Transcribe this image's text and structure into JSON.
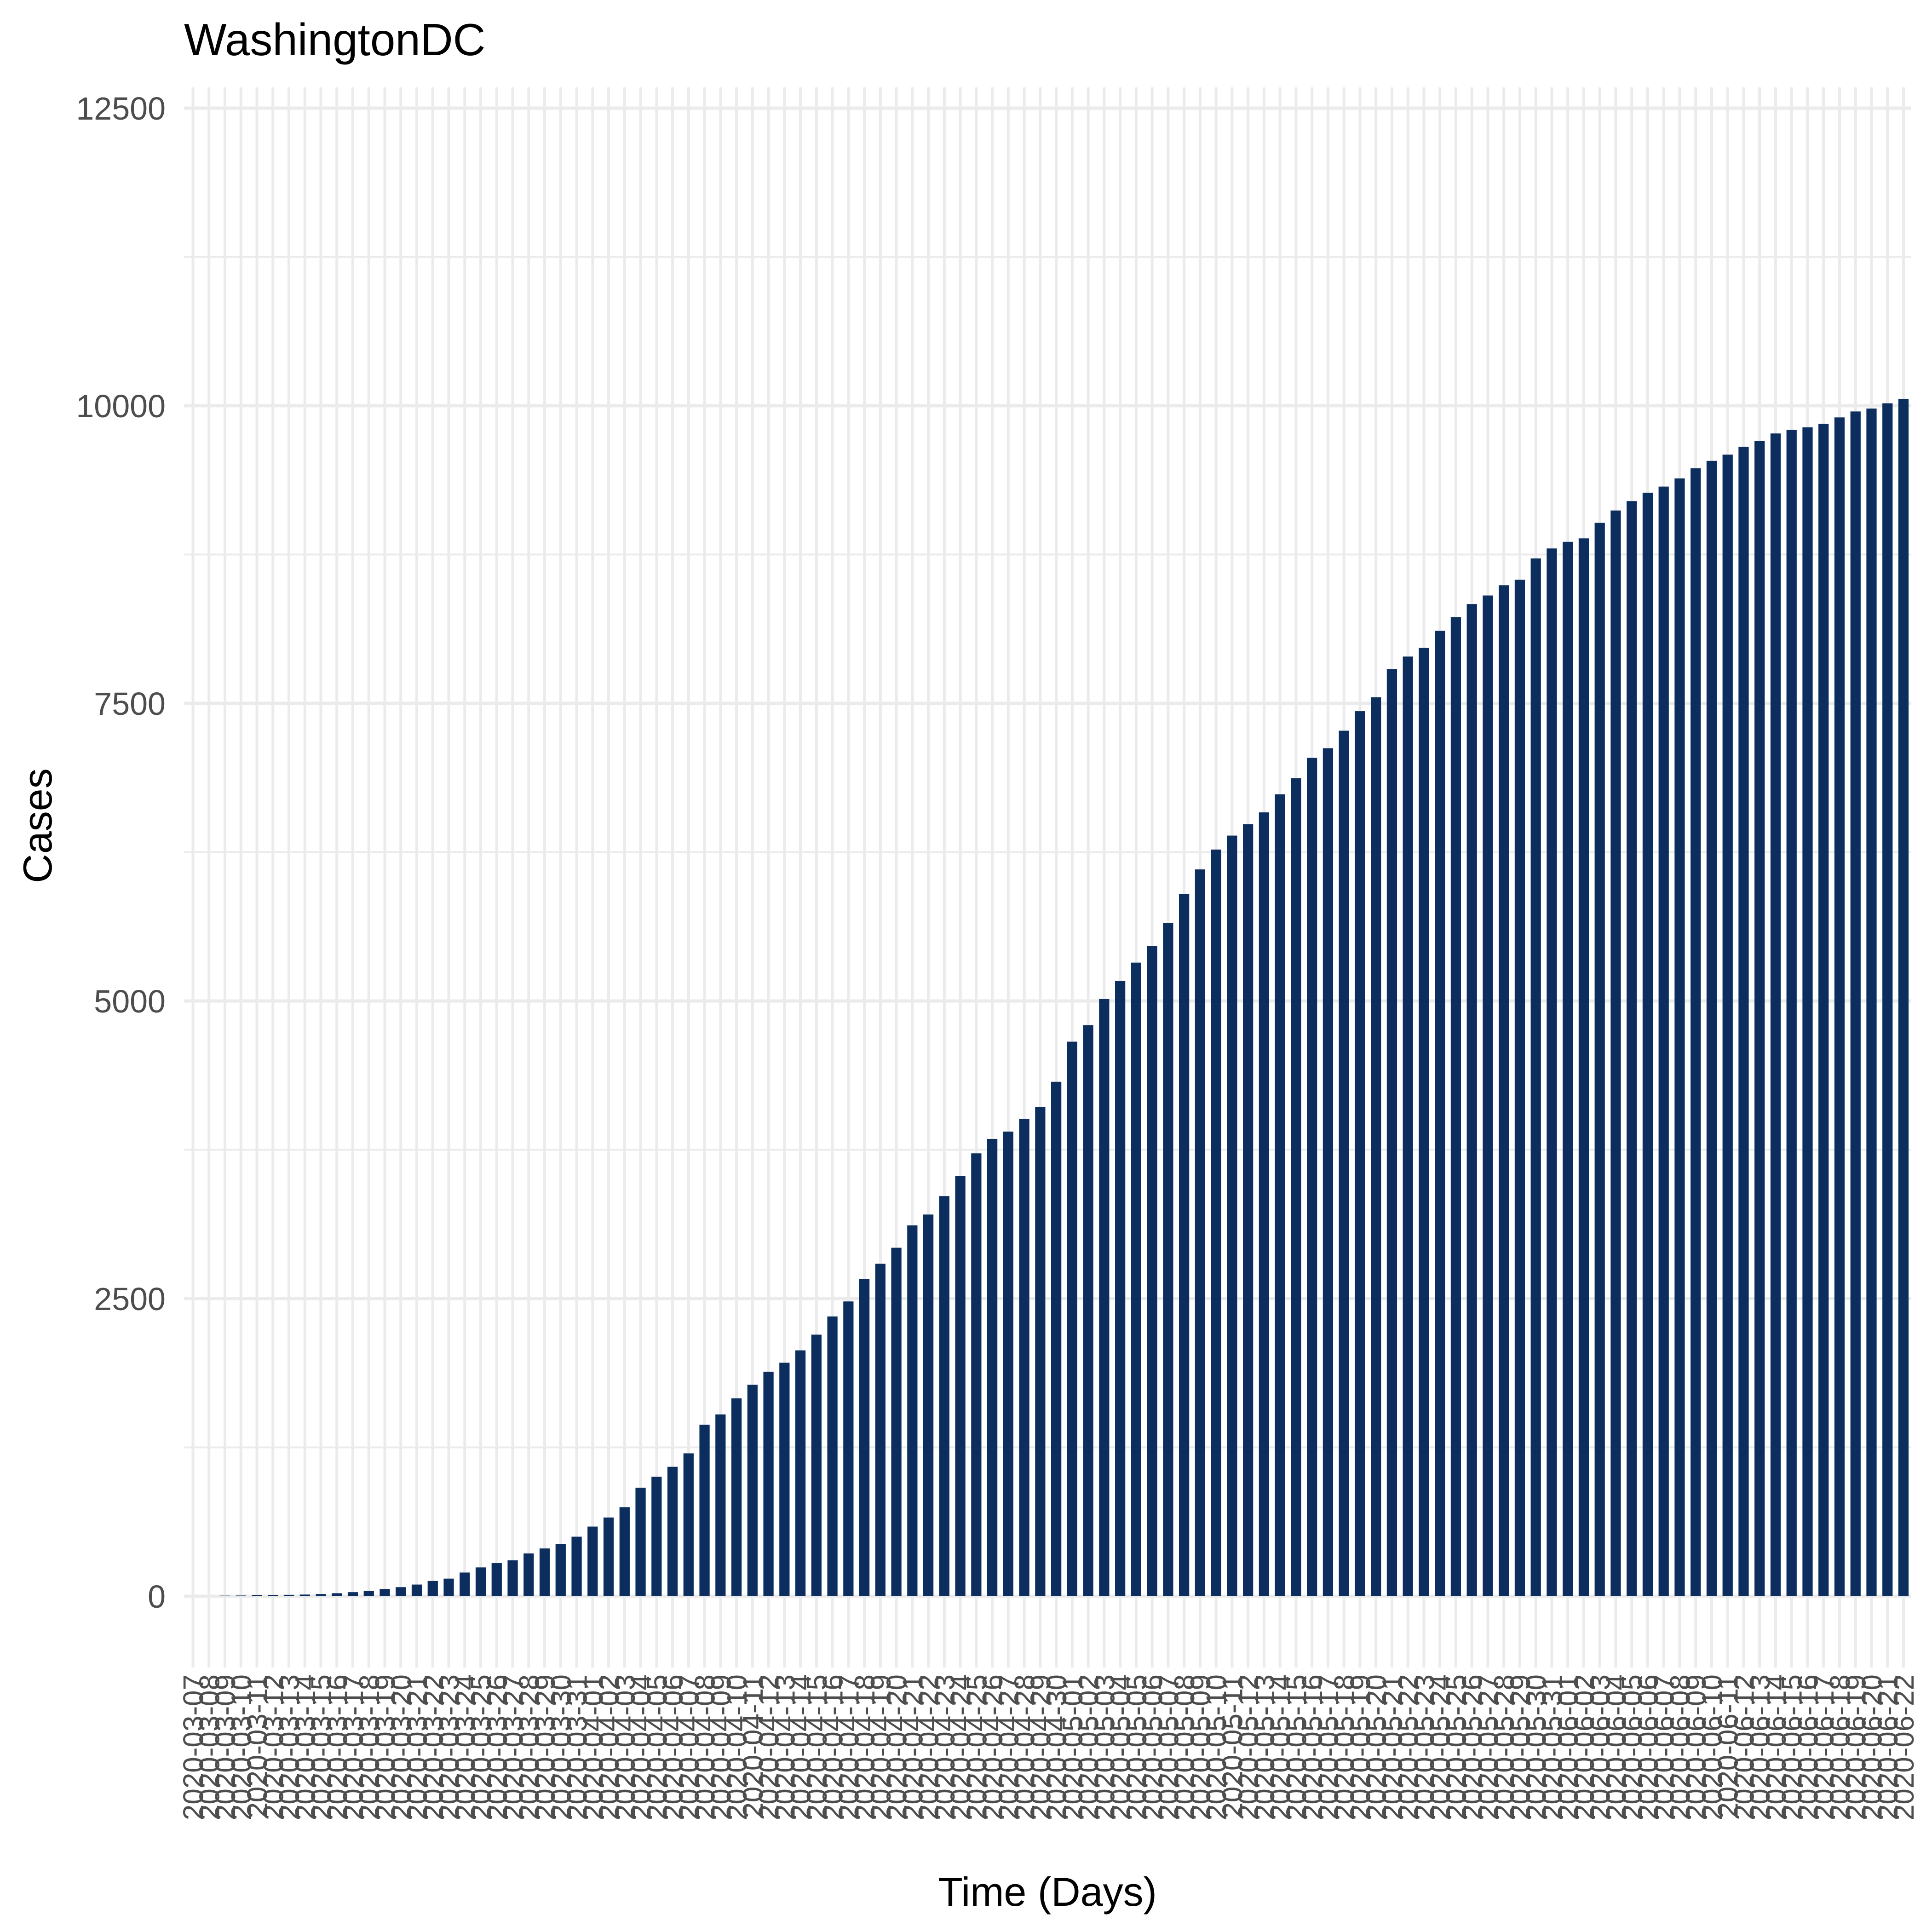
{
  "chart_data": {
    "type": "bar",
    "title": "WashingtonDC",
    "xlabel": "Time (Days)",
    "ylabel": "Cases",
    "ylim": [
      -1100,
      12600
    ],
    "yticks": [
      0,
      2500,
      5000,
      7500,
      10000,
      12500
    ],
    "grid": true,
    "legend": "none",
    "colors": {
      "bar": "#0c2e5e",
      "grid": "#ebebeb",
      "background": "#ffffff"
    },
    "categories": [
      "2020-03-07",
      "2020-03-08",
      "2020-03-09",
      "2020-03-10",
      "2020-03-11",
      "2020-03-12",
      "2020-03-13",
      "2020-03-14",
      "2020-03-15",
      "2020-03-16",
      "2020-03-17",
      "2020-03-18",
      "2020-03-19",
      "2020-03-20",
      "2020-03-21",
      "2020-03-22",
      "2020-03-23",
      "2020-03-24",
      "2020-03-25",
      "2020-03-26",
      "2020-03-27",
      "2020-03-28",
      "2020-03-29",
      "2020-03-30",
      "2020-03-31",
      "2020-04-01",
      "2020-04-02",
      "2020-04-03",
      "2020-04-04",
      "2020-04-05",
      "2020-04-06",
      "2020-04-07",
      "2020-04-08",
      "2020-04-09",
      "2020-04-10",
      "2020-04-11",
      "2020-04-12",
      "2020-04-13",
      "2020-04-14",
      "2020-04-15",
      "2020-04-16",
      "2020-04-17",
      "2020-04-18",
      "2020-04-19",
      "2020-04-20",
      "2020-04-21",
      "2020-04-22",
      "2020-04-23",
      "2020-04-24",
      "2020-04-25",
      "2020-04-26",
      "2020-04-27",
      "2020-04-28",
      "2020-04-29",
      "2020-04-30",
      "2020-05-01",
      "2020-05-02",
      "2020-05-03",
      "2020-05-04",
      "2020-05-05",
      "2020-05-06",
      "2020-05-07",
      "2020-05-08",
      "2020-05-09",
      "2020-05-10",
      "2020-05-11",
      "2020-05-12",
      "2020-05-13",
      "2020-05-14",
      "2020-05-15",
      "2020-05-16",
      "2020-05-17",
      "2020-05-18",
      "2020-05-19",
      "2020-05-20",
      "2020-05-21",
      "2020-05-22",
      "2020-05-23",
      "2020-05-24",
      "2020-05-25",
      "2020-05-26",
      "2020-05-27",
      "2020-05-28",
      "2020-05-29",
      "2020-05-30",
      "2020-05-31",
      "2020-06-01",
      "2020-06-02",
      "2020-06-03",
      "2020-06-04",
      "2020-06-05",
      "2020-06-06",
      "2020-06-07",
      "2020-06-08",
      "2020-06-09",
      "2020-06-10",
      "2020-06-11",
      "2020-06-12",
      "2020-06-13",
      "2020-06-14",
      "2020-06-15",
      "2020-06-16",
      "2020-06-17",
      "2020-06-18",
      "2020-06-19",
      "2020-06-20",
      "2020-06-21",
      "2020-06-22"
    ],
    "values": [
      2,
      3,
      5,
      6,
      8,
      11,
      12,
      14,
      18,
      25,
      34,
      43,
      60,
      76,
      98,
      128,
      148,
      199,
      242,
      278,
      301,
      359,
      401,
      440,
      500,
      585,
      661,
      748,
      911,
      1003,
      1087,
      1200,
      1440,
      1527,
      1662,
      1776,
      1886,
      1961,
      2065,
      2197,
      2350,
      2476,
      2666,
      2793,
      2927,
      3115,
      3206,
      3361,
      3529,
      3720,
      3841,
      3903,
      4009,
      4108,
      4321,
      4658,
      4797,
      5016,
      5170,
      5322,
      5461,
      5654,
      5899,
      6105,
      6272,
      6389,
      6485,
      6584,
      6736,
      6871,
      7042,
      7123,
      7270,
      7434,
      7551,
      7788,
      7893,
      7966,
      8110,
      8225,
      8334,
      8406,
      8492,
      8538,
      8717,
      8801,
      8857,
      8886,
      9016,
      9120,
      9199,
      9269,
      9321,
      9389,
      9474,
      9537,
      9589,
      9654,
      9703,
      9767,
      9796,
      9818,
      9847,
      9902,
      9952,
      9976,
      10020,
      10058
    ]
  }
}
